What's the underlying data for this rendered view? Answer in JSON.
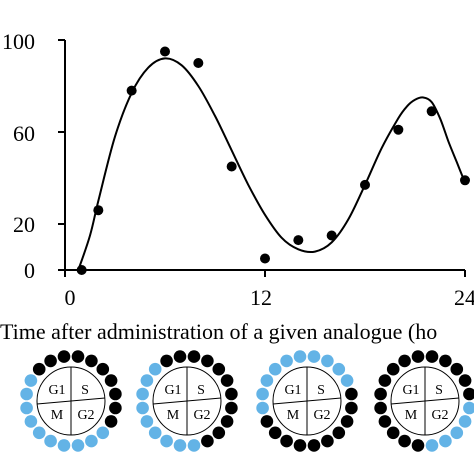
{
  "chart_data": {
    "type": "scatter",
    "title": "",
    "xlabel": "Time after administration of a given analogue (ho",
    "ylabel": "",
    "xlim": [
      0,
      24
    ],
    "ylim": [
      0,
      100
    ],
    "x_ticks": [
      "0",
      "12",
      "24"
    ],
    "y_ticks": [
      "0",
      "20",
      "60",
      "100"
    ],
    "grid": false,
    "series": [
      {
        "type": "scatter",
        "x": [
          1,
          2,
          4,
          6,
          8,
          10,
          12,
          14,
          16,
          18,
          20,
          22,
          24
        ],
        "y": [
          0,
          26,
          78,
          95,
          90,
          45,
          5,
          13,
          15,
          37,
          61,
          69,
          39
        ]
      },
      {
        "type": "line",
        "x": [
          0.8,
          1.5,
          2,
          3,
          4,
          5,
          6,
          7,
          8,
          9,
          10,
          11,
          12,
          13,
          14,
          15,
          16,
          17,
          18,
          19,
          20,
          20.5,
          21,
          21.5,
          22,
          22.5,
          23,
          23.5,
          24
        ],
        "y": [
          0,
          15,
          30,
          58,
          77,
          88,
          92,
          89,
          80,
          67,
          52,
          37,
          24,
          14,
          9,
          8,
          12,
          22,
          37,
          53,
          66,
          71,
          74,
          75,
          73,
          66,
          56,
          47,
          38
        ]
      }
    ],
    "colors": {
      "marker": "#000000",
      "line": "#000000",
      "cycle_blue": "#63b3e6",
      "cycle_black": "#000000"
    }
  },
  "cell_cycles": [
    {
      "labels": [
        "G1",
        "S",
        "M",
        "G2"
      ],
      "beads": [
        "black",
        "black",
        "black",
        "black",
        "black",
        "black",
        "black",
        "blue",
        "blue",
        "blue",
        "blue",
        "blue",
        "blue",
        "blue",
        "blue",
        "blue",
        "blue",
        "black",
        "black",
        "black"
      ]
    },
    {
      "labels": [
        "G1",
        "S",
        "M",
        "G2"
      ],
      "beads": [
        "black",
        "black",
        "black",
        "black",
        "black",
        "black",
        "black",
        "black",
        "black",
        "blue",
        "blue",
        "blue",
        "blue",
        "blue",
        "blue",
        "blue",
        "blue",
        "blue",
        "black",
        "black"
      ]
    },
    {
      "labels": [
        "G1",
        "S",
        "M",
        "G2"
      ],
      "beads": [
        "blue",
        "blue",
        "blue",
        "blue",
        "black",
        "black",
        "black",
        "black",
        "black",
        "black",
        "black",
        "black",
        "black",
        "black",
        "blue",
        "blue",
        "blue",
        "blue",
        "blue",
        "blue"
      ]
    },
    {
      "labels": [
        "G1",
        "S",
        "M",
        "G2"
      ],
      "beads": [
        "black",
        "black",
        "black",
        "black",
        "black",
        "blue",
        "blue",
        "blue",
        "blue",
        "blue",
        "black",
        "black",
        "black",
        "black",
        "black",
        "black",
        "black",
        "black",
        "black",
        "black"
      ]
    }
  ]
}
